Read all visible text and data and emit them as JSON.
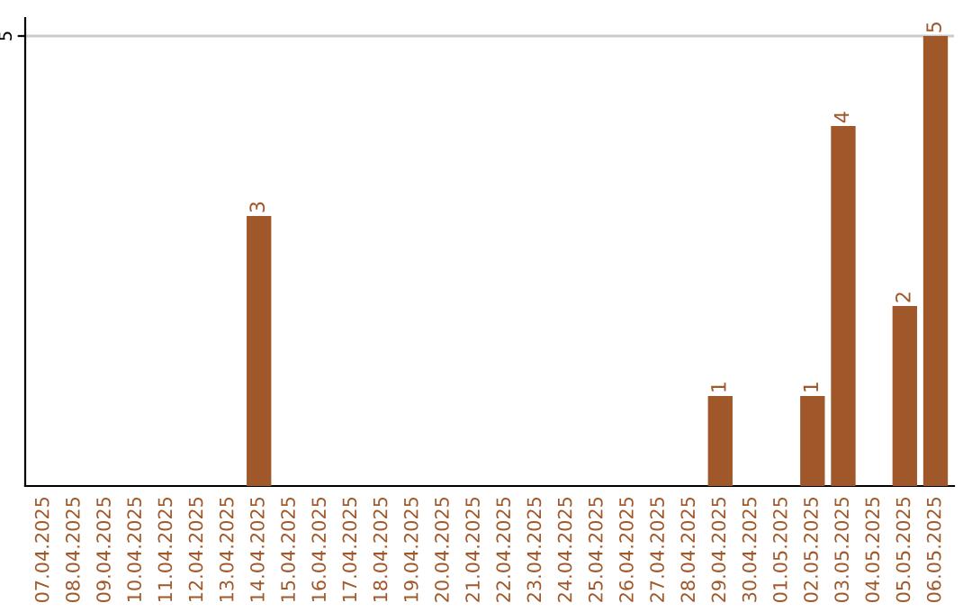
{
  "chart_data": {
    "type": "bar",
    "categories": [
      "07.04.2025",
      "08.04.2025",
      "09.04.2025",
      "10.04.2025",
      "11.04.2025",
      "12.04.2025",
      "13.04.2025",
      "14.04.2025",
      "15.04.2025",
      "16.04.2025",
      "17.04.2025",
      "18.04.2025",
      "19.04.2025",
      "20.04.2025",
      "21.04.2025",
      "22.04.2025",
      "23.04.2025",
      "24.04.2025",
      "25.04.2025",
      "26.04.2025",
      "27.04.2025",
      "28.04.2025",
      "29.04.2025",
      "30.04.2025",
      "01.05.2025",
      "02.05.2025",
      "03.05.2025",
      "04.05.2025",
      "05.05.2025",
      "06.05.2025"
    ],
    "values": [
      0,
      0,
      0,
      0,
      0,
      0,
      0,
      3,
      0,
      0,
      0,
      0,
      0,
      0,
      0,
      0,
      0,
      0,
      0,
      0,
      0,
      0,
      1,
      0,
      0,
      1,
      4,
      0,
      2,
      5
    ],
    "value_labels": [
      null,
      null,
      null,
      null,
      null,
      null,
      null,
      "3",
      null,
      null,
      null,
      null,
      null,
      null,
      null,
      null,
      null,
      null,
      null,
      null,
      null,
      null,
      "1",
      null,
      null,
      "1",
      "4",
      null,
      "2",
      "5"
    ],
    "color": "#a0582a",
    "ylim": [
      0,
      5.2
    ],
    "yticks": [
      5
    ],
    "grid": "y"
  }
}
